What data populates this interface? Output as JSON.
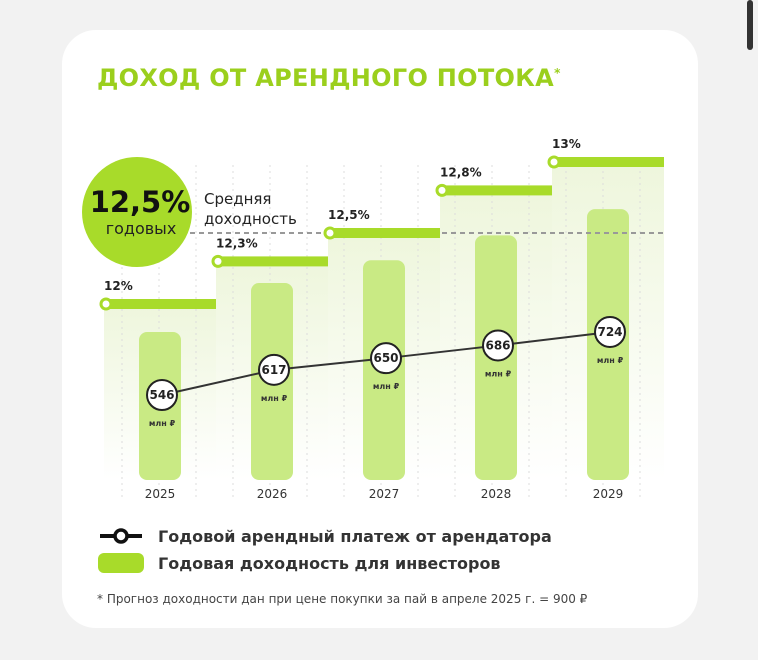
{
  "title": "ДОХОД ОТ АРЕНДНОГО ПОТОКА",
  "title_mark": "*",
  "colors": {
    "accent": "#9bcf1d",
    "step": "#a8db2a",
    "bar": "#c9ea84",
    "band": "#eef6dc",
    "line": "#333333"
  },
  "badge": {
    "value": "12,5%",
    "unit": "годовых",
    "caption_line1": "Средняя",
    "caption_line2": "доходность"
  },
  "chart_data": {
    "type": "bar",
    "categories": [
      "2025",
      "2026",
      "2027",
      "2028",
      "2029"
    ],
    "series": [
      {
        "name": "Годовая доходность для инвесторов",
        "values": [
          12,
          12.3,
          12.5,
          12.8,
          13
        ],
        "labels": [
          "12%",
          "12,3%",
          "12,5%",
          "12,8%",
          "13%"
        ]
      },
      {
        "name": "Годовой арендный платеж от арендатора",
        "values": [
          546,
          617,
          650,
          686,
          724
        ],
        "unit": "млн ₽",
        "type": "line"
      }
    ],
    "average": 12.5,
    "grid": true
  },
  "legend": {
    "line": "Годовой арендный платеж от арендатора",
    "bar": "Годовая доходность для инвесторов"
  },
  "footnote": "* Прогноз доходности дан при цене покупки за пай в апреле 2025 г. = 900 ₽"
}
